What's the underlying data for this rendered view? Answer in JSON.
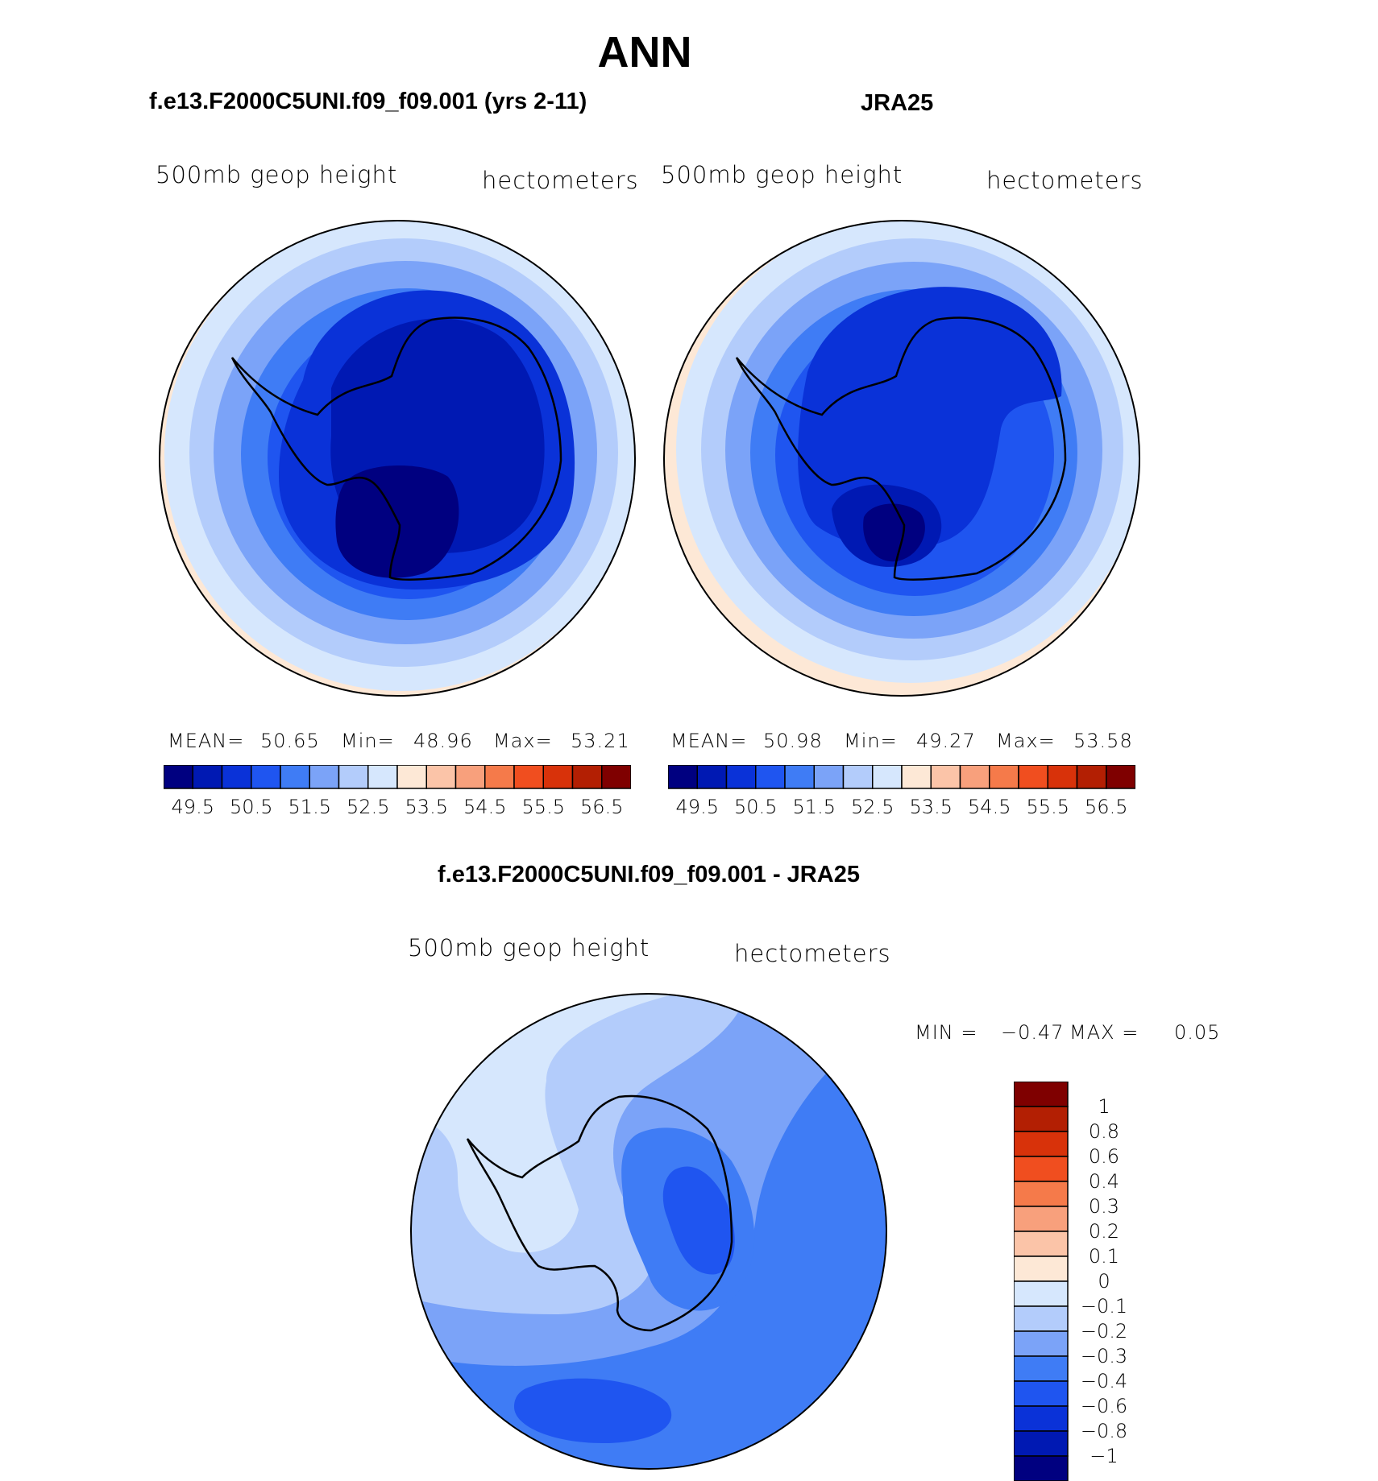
{
  "figure_title": "ANN",
  "panels": [
    {
      "heading": "f.e13.F2000C5UNI.f09_f09.001 (yrs 2-11)",
      "variable": "500mb geop height",
      "units": "hectometers",
      "stats": {
        "mean_label": "MEAN=",
        "mean": "50.65",
        "min_label": "Min=",
        "min": "48.96",
        "max_label": "Max=",
        "max": "53.21"
      }
    },
    {
      "heading": "JRA25",
      "variable": "500mb geop height",
      "units": "hectometers",
      "stats": {
        "mean_label": "MEAN=",
        "mean": "50.98",
        "min_label": "Min=",
        "min": "49.27",
        "max_label": "Max=",
        "max": "53.58"
      }
    },
    {
      "heading": "f.e13.F2000C5UNI.f09_f09.001 - JRA25",
      "variable": "500mb geop height",
      "units": "hectometers",
      "stats": {
        "min_label": "MIN =",
        "min": "−0.47",
        "max_label": "MAX =",
        "max": "0.05"
      }
    }
  ],
  "horizontal_colorbar": {
    "colors": [
      "#000080",
      "#0019b3",
      "#0a32d8",
      "#1f55f0",
      "#3f7cf5",
      "#7ba3f8",
      "#b3ccfb",
      "#d6e7fd",
      "#fde8d6",
      "#fbc4a8",
      "#f8a07c",
      "#f57a4a",
      "#f04e1f",
      "#d8320a",
      "#b31f03",
      "#7f0000"
    ],
    "labels": [
      "49.5",
      "50.5",
      "51.5",
      "52.5",
      "53.5",
      "54.5",
      "55.5",
      "56.5"
    ]
  },
  "vertical_colorbar": {
    "colors": [
      "#7f0000",
      "#b31f03",
      "#d8320a",
      "#f04e1f",
      "#f57a4a",
      "#f8a07c",
      "#fbc4a8",
      "#fde8d6",
      "#d6e7fd",
      "#b3ccfb",
      "#7ba3f8",
      "#3f7cf5",
      "#1f55f0",
      "#0a32d8",
      "#0019b3",
      "#000080"
    ],
    "labels": [
      "1",
      "0.8",
      "0.6",
      "0.4",
      "0.3",
      "0.2",
      "0.1",
      "0",
      "−0.1",
      "−0.2",
      "−0.3",
      "−0.4",
      "−0.6",
      "−0.8",
      "−1"
    ]
  }
}
